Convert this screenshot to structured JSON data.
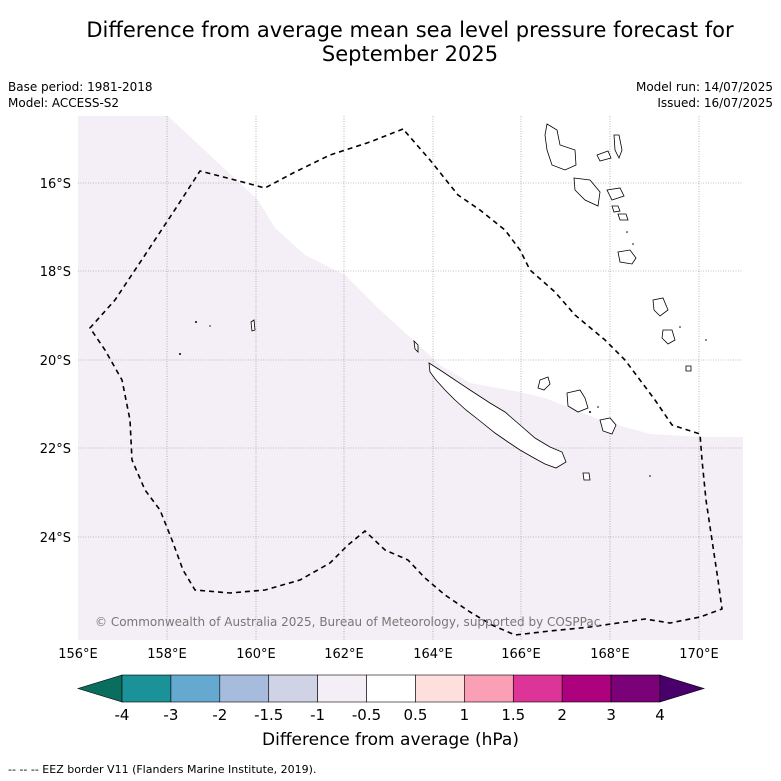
{
  "title_line1": "Difference from average mean sea level pressure forecast for",
  "title_line2": "September 2025",
  "base_period": "Base period: 1981-2018",
  "model": "Model: ACCESS-S2",
  "model_run": "Model run: 14/07/2025",
  "issued": "Issued: 16/07/2025",
  "copyright": "© Commonwealth of Australia 2025, Bureau of Meteorology, supported by COSPPac",
  "lat_labels": [
    "16°S",
    "18°S",
    "20°S",
    "22°S",
    "24°S"
  ],
  "lon_labels": [
    "156°E",
    "158°E",
    "160°E",
    "162°E",
    "164°E",
    "166°E",
    "168°E",
    "170°E"
  ],
  "colorbar": {
    "ticks": [
      "-4",
      "-3",
      "-2",
      "-1.5",
      "-1",
      "-0.5",
      "0.5",
      "1",
      "1.5",
      "2",
      "3",
      "4"
    ],
    "colors": [
      "#1a9297",
      "#65a9d1",
      "#a7bcdc",
      "#d0d2e5",
      "#f4eef6",
      "#ffffff",
      "#fde0dd",
      "#fa9fb5",
      "#dd3497",
      "#ae017e",
      "#7a0177"
    ],
    "under_color": "#0a6e5e",
    "over_color": "#49006a",
    "label": "Difference from average (hPa)"
  },
  "footer": "--  --  -- EEZ border V11 (Flanders Marine Institute, 2019)."
}
